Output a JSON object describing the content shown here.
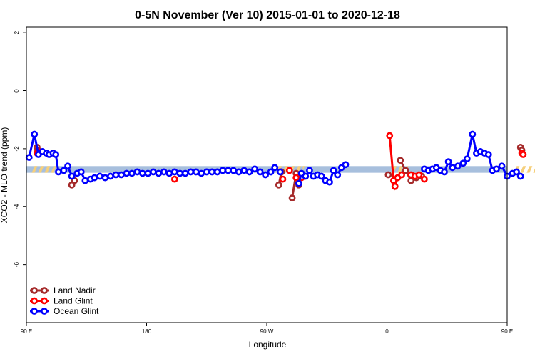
{
  "chart_data": {
    "type": "line",
    "title": "0-5N November (Ver 10)   2015-01-01 to 2020-12-18",
    "xlabel": "Longitude",
    "ylabel": "XCO2 - MLO trend (ppm)",
    "xlim": [
      90,
      450
    ],
    "ylim": [
      -8,
      2.2
    ],
    "x_ticks": [
      {
        "value": 90,
        "label": "90 E"
      },
      {
        "value": 180,
        "label": "180"
      },
      {
        "value": 270,
        "label": "90 W"
      },
      {
        "value": 360,
        "label": "0"
      },
      {
        "value": 450,
        "label": "90 E"
      },
      {
        "value": 540,
        "label": "180"
      }
    ],
    "y_ticks": [
      {
        "value": 2,
        "label": "2"
      },
      {
        "value": 0,
        "label": "0"
      },
      {
        "value": -2,
        "label": "-2"
      },
      {
        "value": -4,
        "label": "-4"
      },
      {
        "value": -6,
        "label": "-6"
      }
    ],
    "band": {
      "lower": -2.83,
      "upper": -2.6,
      "color": "#a7bfdd",
      "highlight_color": "#f5cf7b"
    },
    "legend_position": "bottom-left",
    "series": [
      {
        "name": "Land Nadir",
        "color": "#a52a2a",
        "segments": [
          [
            [
              98,
              -1.95
            ],
            [
              98.5,
              -2.05
            ]
          ],
          [
            [
              124,
              -3.25
            ],
            [
              126,
              -3.1
            ]
          ],
          [
            [
              279,
              -3.25
            ],
            [
              281,
              -2.8
            ]
          ],
          [
            [
              289,
              -3.7
            ],
            [
              292,
              -2.85
            ],
            [
              294,
              -3.25
            ],
            [
              296,
              -2.9
            ]
          ],
          [
            [
              361,
              -2.9
            ]
          ],
          [
            [
              370,
              -2.4
            ],
            [
              374,
              -2.75
            ],
            [
              378,
              -3.1
            ],
            [
              382,
              -3.0
            ],
            [
              386,
              -2.95
            ]
          ],
          [
            [
              460,
              -1.95
            ],
            [
              461,
              -2.05
            ]
          ],
          [
            [
              475,
              -3.3
            ],
            [
              477,
              -3.1
            ]
          ]
        ]
      },
      {
        "name": "Land Glint",
        "color": "#ff0000",
        "segments": [
          [
            [
              98,
              -2.15
            ],
            [
              99,
              -2.1
            ]
          ],
          [
            [
              201,
              -3.05
            ]
          ],
          [
            [
              282,
              -3.05
            ]
          ],
          [
            [
              287,
              -2.75
            ]
          ],
          [
            [
              292,
              -3.0
            ],
            [
              296,
              -3.0
            ]
          ],
          [
            [
              362,
              -1.55
            ],
            [
              365,
              -3.1
            ],
            [
              366,
              -3.3
            ],
            [
              368,
              -3.0
            ],
            [
              371,
              -2.9
            ]
          ],
          [
            [
              378,
              -2.9
            ],
            [
              381,
              -2.95
            ],
            [
              384,
              -2.9
            ],
            [
              388,
              -3.05
            ]
          ],
          [
            [
              461,
              -2.15
            ],
            [
              462,
              -2.2
            ]
          ]
        ]
      },
      {
        "name": "Ocean Glint",
        "color": "#0000ff",
        "segments": [
          [
            [
              92,
              -2.3
            ],
            [
              96,
              -1.5
            ],
            [
              99,
              -2.2
            ],
            [
              102,
              -2.1
            ],
            [
              105,
              -2.15
            ],
            [
              107,
              -2.2
            ],
            [
              110,
              -2.15
            ],
            [
              112,
              -2.2
            ],
            [
              114,
              -2.8
            ],
            [
              118,
              -2.75
            ],
            [
              121,
              -2.6
            ],
            [
              124,
              -2.95
            ],
            [
              128,
              -2.85
            ],
            [
              131,
              -2.8
            ],
            [
              134,
              -3.1
            ],
            [
              138,
              -3.05
            ],
            [
              141,
              -3.0
            ],
            [
              145,
              -2.95
            ],
            [
              149,
              -3.0
            ],
            [
              153,
              -2.95
            ],
            [
              157,
              -2.9
            ],
            [
              161,
              -2.9
            ],
            [
              165,
              -2.85
            ],
            [
              169,
              -2.85
            ],
            [
              173,
              -2.8
            ],
            [
              177,
              -2.85
            ],
            [
              181,
              -2.85
            ],
            [
              185,
              -2.8
            ],
            [
              189,
              -2.85
            ],
            [
              193,
              -2.8
            ],
            [
              197,
              -2.85
            ],
            [
              201,
              -2.8
            ],
            [
              205,
              -2.85
            ],
            [
              209,
              -2.85
            ],
            [
              213,
              -2.8
            ],
            [
              217,
              -2.8
            ],
            [
              221,
              -2.85
            ],
            [
              225,
              -2.8
            ],
            [
              229,
              -2.8
            ],
            [
              233,
              -2.8
            ],
            [
              237,
              -2.75
            ],
            [
              241,
              -2.75
            ],
            [
              245,
              -2.75
            ],
            [
              249,
              -2.8
            ],
            [
              253,
              -2.75
            ],
            [
              257,
              -2.8
            ],
            [
              261,
              -2.7
            ],
            [
              265,
              -2.8
            ],
            [
              269,
              -2.9
            ],
            [
              273,
              -2.8
            ],
            [
              276,
              -2.65
            ],
            [
              280,
              -2.8
            ]
          ],
          [
            [
              294,
              -3.2
            ],
            [
              296,
              -2.85
            ],
            [
              299,
              -2.95
            ],
            [
              302,
              -2.75
            ],
            [
              305,
              -2.95
            ],
            [
              308,
              -2.9
            ],
            [
              311,
              -2.95
            ],
            [
              314,
              -3.1
            ],
            [
              317,
              -3.15
            ],
            [
              320,
              -2.75
            ],
            [
              323,
              -2.9
            ],
            [
              326,
              -2.65
            ],
            [
              329,
              -2.55
            ]
          ],
          [
            [
              388,
              -2.7
            ],
            [
              391,
              -2.75
            ],
            [
              394,
              -2.7
            ],
            [
              397,
              -2.65
            ],
            [
              400,
              -2.75
            ],
            [
              403,
              -2.8
            ],
            [
              406,
              -2.45
            ],
            [
              409,
              -2.65
            ],
            [
              413,
              -2.6
            ],
            [
              417,
              -2.5
            ],
            [
              420,
              -2.35
            ],
            [
              424,
              -1.5
            ],
            [
              427,
              -2.15
            ],
            [
              430,
              -2.1
            ],
            [
              433,
              -2.15
            ],
            [
              436,
              -2.2
            ],
            [
              439,
              -2.75
            ],
            [
              442,
              -2.7
            ],
            [
              446,
              -2.6
            ],
            [
              450,
              -2.95
            ],
            [
              454,
              -2.85
            ],
            [
              457,
              -2.8
            ],
            [
              460,
              -2.95
            ]
          ]
        ]
      }
    ]
  }
}
